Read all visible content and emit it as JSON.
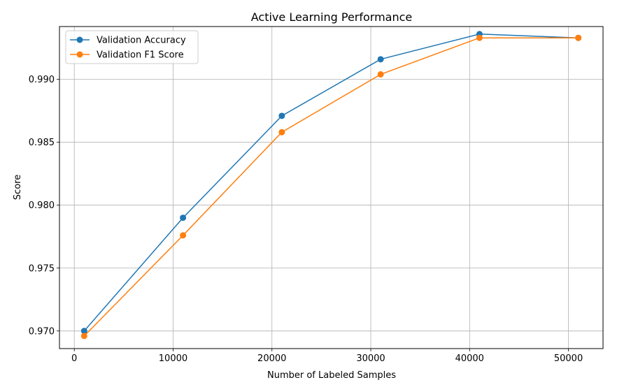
{
  "chart_data": {
    "type": "line",
    "title": "Active Learning Performance",
    "xlabel": "Number of Labeled Samples",
    "ylabel": "Score",
    "xlim": [
      -1500,
      53500
    ],
    "ylim": [
      0.9686,
      0.9942
    ],
    "xticks": [
      0,
      10000,
      20000,
      30000,
      40000,
      50000
    ],
    "xtick_labels": [
      "0",
      "10000",
      "20000",
      "30000",
      "40000",
      "50000"
    ],
    "yticks": [
      0.97,
      0.975,
      0.98,
      0.985,
      0.99
    ],
    "ytick_labels": [
      "0.970",
      "0.975",
      "0.980",
      "0.985",
      "0.990"
    ],
    "grid": true,
    "legend_position": "upper-left",
    "x": [
      1000,
      11000,
      21000,
      31000,
      41000,
      51000
    ],
    "series": [
      {
        "name": "Validation Accuracy",
        "color": "#1f77b4",
        "values": [
          0.97,
          0.979,
          0.9871,
          0.9916,
          0.9936,
          0.9933
        ]
      },
      {
        "name": "Validation F1 Score",
        "color": "#ff7f0e",
        "values": [
          0.9696,
          0.9776,
          0.9858,
          0.9904,
          0.9933,
          0.9933
        ]
      }
    ]
  }
}
